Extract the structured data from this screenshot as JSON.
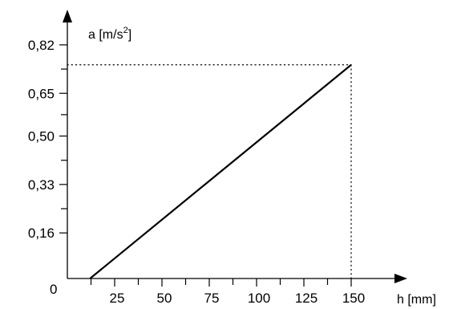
{
  "chart_data": {
    "type": "line",
    "ylabel": {
      "main": "a [m/s",
      "sup": "2",
      "close": "]"
    },
    "xlabel": "h [mm]",
    "origin_label": "0",
    "x_ticks": [
      {
        "value": 25,
        "label": "25"
      },
      {
        "value": 50,
        "label": "50"
      },
      {
        "value": 75,
        "label": "75"
      },
      {
        "value": 100,
        "label": "100"
      },
      {
        "value": 125,
        "label": "125"
      },
      {
        "value": 150,
        "label": "150"
      }
    ],
    "x_minor_ticks": [
      12.5,
      37.5,
      62.5,
      87.5,
      112.5,
      137.5
    ],
    "y_ticks": [
      {
        "value": 0.16,
        "label": "0,16"
      },
      {
        "value": 0.33,
        "label": "0,33"
      },
      {
        "value": 0.5,
        "label": "0,50"
      },
      {
        "value": 0.65,
        "label": "0,65"
      },
      {
        "value": 0.82,
        "label": "0,82"
      }
    ],
    "y_minor_ticks": [
      0.245,
      0.415,
      0.575,
      0.735
    ],
    "series": [
      {
        "x": [
          12,
          150
        ],
        "y": [
          0,
          0.75
        ]
      }
    ],
    "reference_point": {
      "x": 150,
      "y": 0.75
    },
    "grid": false
  }
}
